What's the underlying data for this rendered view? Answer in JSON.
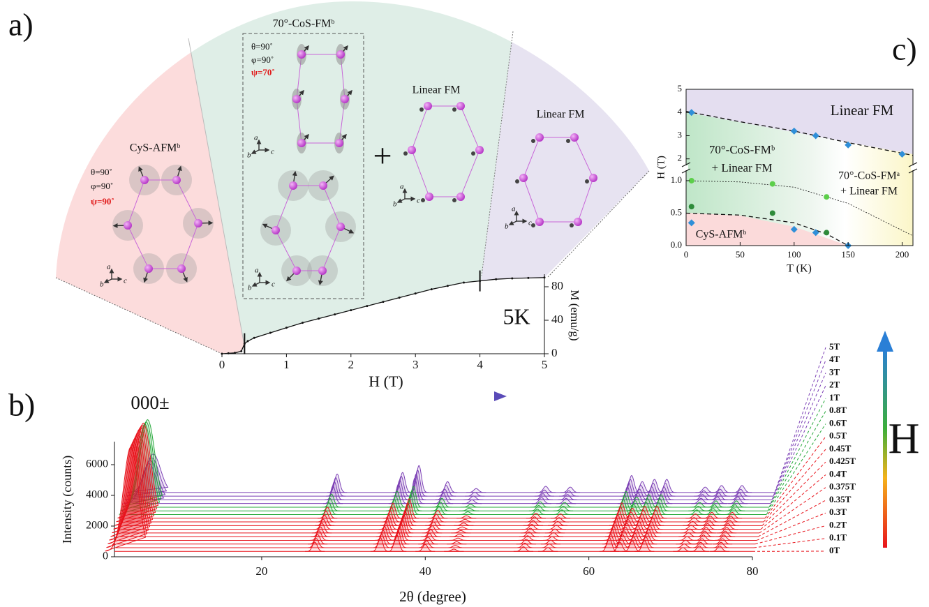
{
  "panel_labels": [
    "a)",
    "b)",
    "c)"
  ],
  "diagram": {
    "crystal_axes": [
      "a",
      "b",
      "c"
    ],
    "plus": "+",
    "phases": [
      {
        "name": "CyS-AFMᵇ",
        "angles": [
          "θ=90˚",
          "φ=90˚",
          "ψ=90˚"
        ]
      },
      {
        "name": "70°-CoS-FMᵇ",
        "angles": [
          "θ=90˚",
          "φ=90˚",
          "ψ=70˚"
        ]
      },
      {
        "name": "Linear FM"
      },
      {
        "name": "Linear FM"
      }
    ]
  },
  "chart_data": [
    {
      "type": "line",
      "xlabel": "H (T)",
      "ylabel": "M (emu/g)",
      "annotation": "5K",
      "color": "#111111",
      "x": [
        0,
        0.1,
        0.2,
        0.3,
        0.35,
        0.4,
        0.5,
        0.75,
        1,
        1.25,
        1.5,
        1.75,
        2,
        2.25,
        2.5,
        2.75,
        3,
        3.25,
        3.5,
        3.75,
        4,
        4.25,
        4.5,
        4.75,
        5
      ],
      "values": [
        0,
        0.5,
        1,
        3,
        12,
        15,
        19,
        25,
        31,
        37,
        42,
        47,
        52,
        57,
        62,
        67,
        72,
        77,
        81,
        85,
        87,
        89,
        90,
        90.5,
        91
      ],
      "xlim": [
        0,
        5
      ],
      "xticks": [
        0,
        1,
        2,
        3,
        4,
        5
      ],
      "ylim": [
        0,
        95
      ],
      "yticks": [
        0,
        40,
        80
      ],
      "phase_boundaries": [
        0.35,
        4
      ]
    },
    {
      "type": "waterfall",
      "xlabel": "2θ (degree)",
      "ylabel": "Intensity (counts)",
      "annotation": "000±",
      "field_label": "H",
      "xlim": [
        2,
        80
      ],
      "xticks": [
        20,
        40,
        60,
        80
      ],
      "ylim": [
        0,
        7500
      ],
      "yticks": [
        0,
        2000,
        4000,
        6000
      ],
      "x": [
        4,
        26.5,
        34.5,
        36.5,
        40,
        43.5,
        52,
        55,
        62.5,
        63.8,
        65.3,
        66.8,
        71.5,
        73.5,
        76
      ],
      "series": [
        {
          "name": "0T",
          "color": "#e8141c",
          "baseline": 350,
          "values": [
            6800,
            600,
            900,
            1100,
            450,
            150,
            300,
            250,
            900,
            600,
            700,
            700,
            250,
            350,
            350
          ]
        },
        {
          "name": "0.1T",
          "color": "#e8141c",
          "baseline": 590,
          "values": [
            6750,
            600,
            900,
            1100,
            450,
            150,
            300,
            250,
            900,
            600,
            700,
            700,
            250,
            350,
            350
          ]
        },
        {
          "name": "0.2T",
          "color": "#e8141c",
          "baseline": 830,
          "values": [
            6700,
            620,
            900,
            1150,
            450,
            150,
            300,
            250,
            950,
            600,
            700,
            700,
            250,
            350,
            350
          ]
        },
        {
          "name": "0.3T",
          "color": "#e8141c",
          "baseline": 1070,
          "values": [
            6650,
            620,
            920,
            1150,
            460,
            150,
            300,
            250,
            950,
            620,
            720,
            720,
            250,
            350,
            350
          ]
        },
        {
          "name": "0.35T",
          "color": "#e8141c",
          "baseline": 1310,
          "values": [
            6600,
            640,
            920,
            1180,
            460,
            160,
            310,
            260,
            950,
            620,
            720,
            720,
            260,
            360,
            360
          ]
        },
        {
          "name": "0.375T",
          "color": "#e8141c",
          "baseline": 1550,
          "values": [
            6550,
            650,
            940,
            1200,
            470,
            160,
            310,
            260,
            960,
            630,
            740,
            740,
            260,
            360,
            360
          ]
        },
        {
          "name": "0.4T",
          "color": "#e8141c",
          "baseline": 1790,
          "values": [
            6500,
            660,
            950,
            1200,
            480,
            160,
            320,
            270,
            970,
            630,
            750,
            750,
            270,
            370,
            370
          ]
        },
        {
          "name": "0.425T",
          "color": "#e8141c",
          "baseline": 2030,
          "values": [
            6400,
            680,
            960,
            1220,
            490,
            170,
            320,
            270,
            980,
            640,
            760,
            760,
            270,
            370,
            370
          ]
        },
        {
          "name": "0.45T",
          "color": "#e8141c",
          "baseline": 2270,
          "values": [
            6300,
            700,
            970,
            1250,
            500,
            170,
            330,
            280,
            990,
            640,
            770,
            770,
            280,
            380,
            380
          ]
        },
        {
          "name": "0.5T",
          "color": "#e8141c",
          "baseline": 2510,
          "values": [
            6200,
            720,
            980,
            1270,
            510,
            170,
            330,
            280,
            1000,
            650,
            780,
            780,
            280,
            380,
            380
          ]
        },
        {
          "name": "0.6T",
          "color": "#26a83a",
          "baseline": 2750,
          "values": [
            5900,
            780,
            1000,
            1300,
            550,
            180,
            350,
            300,
            1000,
            650,
            800,
            800,
            300,
            400,
            400
          ]
        },
        {
          "name": "0.8T",
          "color": "#26a83a",
          "baseline": 2990,
          "values": [
            5800,
            800,
            1000,
            1320,
            560,
            180,
            350,
            300,
            1020,
            660,
            800,
            800,
            300,
            400,
            400
          ]
        },
        {
          "name": "1T",
          "color": "#26a83a",
          "baseline": 3230,
          "values": [
            5700,
            850,
            1050,
            1350,
            580,
            190,
            360,
            310,
            1030,
            670,
            810,
            810,
            310,
            410,
            410
          ]
        },
        {
          "name": "2T",
          "color": "#7b3fb5",
          "baseline": 3470,
          "values": [
            2600,
            1150,
            1250,
            1650,
            680,
            240,
            390,
            340,
            1080,
            690,
            840,
            840,
            340,
            440,
            440
          ]
        },
        {
          "name": "3T",
          "color": "#7b3fb5",
          "baseline": 3710,
          "values": [
            2550,
            1180,
            1280,
            1680,
            690,
            250,
            400,
            350,
            1090,
            700,
            850,
            850,
            350,
            450,
            450
          ]
        },
        {
          "name": "4T",
          "color": "#7b3fb5",
          "baseline": 3950,
          "values": [
            2500,
            1200,
            1300,
            1700,
            700,
            250,
            400,
            350,
            1100,
            700,
            850,
            850,
            350,
            450,
            450
          ]
        },
        {
          "name": "5T",
          "color": "#7b3fb5",
          "baseline": 4190,
          "values": [
            2500,
            1200,
            1300,
            1750,
            700,
            250,
            400,
            350,
            1100,
            700,
            850,
            850,
            350,
            450,
            450
          ]
        }
      ]
    },
    {
      "type": "scatter",
      "xlabel": "T (K)",
      "ylabel": "H (T)",
      "xlim": [
        0,
        210
      ],
      "xticks": [
        0,
        50,
        100,
        150,
        200
      ],
      "y_segments": [
        {
          "ylim": [
            0,
            1.15
          ],
          "yticks": [
            {
              "value": 0,
              "label": "0.0"
            },
            {
              "value": 0.5,
              "label": "0.5"
            },
            {
              "value": 1,
              "label": "1.0"
            }
          ]
        },
        {
          "ylim": [
            1.75,
            5
          ],
          "yticks": [
            2,
            3,
            4,
            5
          ]
        }
      ],
      "regions": [
        "Linear FM",
        "70°-CoS-FMᵇ",
        "+ Linear FM",
        "70°-CoS-FMᵃ",
        "+ Linear FM",
        "CyS-AFMᵇ"
      ],
      "series": [
        {
          "marker": "diamond",
          "color": "#2f8fd8",
          "x": [
            5,
            100,
            120,
            150,
            200
          ],
          "values": [
            4.0,
            3.2,
            3.0,
            2.6,
            2.2
          ]
        },
        {
          "marker": "diamond",
          "color": "#2f8fd8",
          "x": [
            5,
            100,
            120,
            150
          ],
          "values": [
            0.35,
            0.25,
            0.2,
            0.0
          ]
        },
        {
          "marker": "circle",
          "color": "#5ccf4a",
          "x": [
            5,
            80,
            130
          ],
          "values": [
            1.0,
            0.95,
            0.75
          ]
        },
        {
          "marker": "circle",
          "color": "#2e8b3a",
          "x": [
            5,
            80,
            130
          ],
          "values": [
            0.6,
            0.5,
            0.2
          ]
        }
      ],
      "boundaries": [
        {
          "style": "dashed",
          "x": [
            0,
            50,
            100,
            150,
            210
          ],
          "values": [
            4.05,
            3.6,
            3.2,
            2.7,
            2.15
          ]
        },
        {
          "style": "dotted",
          "x": [
            0,
            50,
            100,
            150,
            210
          ],
          "values": [
            1.0,
            0.98,
            0.9,
            0.65,
            0.15
          ]
        },
        {
          "style": "dashed",
          "x": [
            0,
            50,
            100,
            130,
            150
          ],
          "values": [
            0.5,
            0.47,
            0.35,
            0.18,
            0.0
          ]
        }
      ]
    }
  ]
}
